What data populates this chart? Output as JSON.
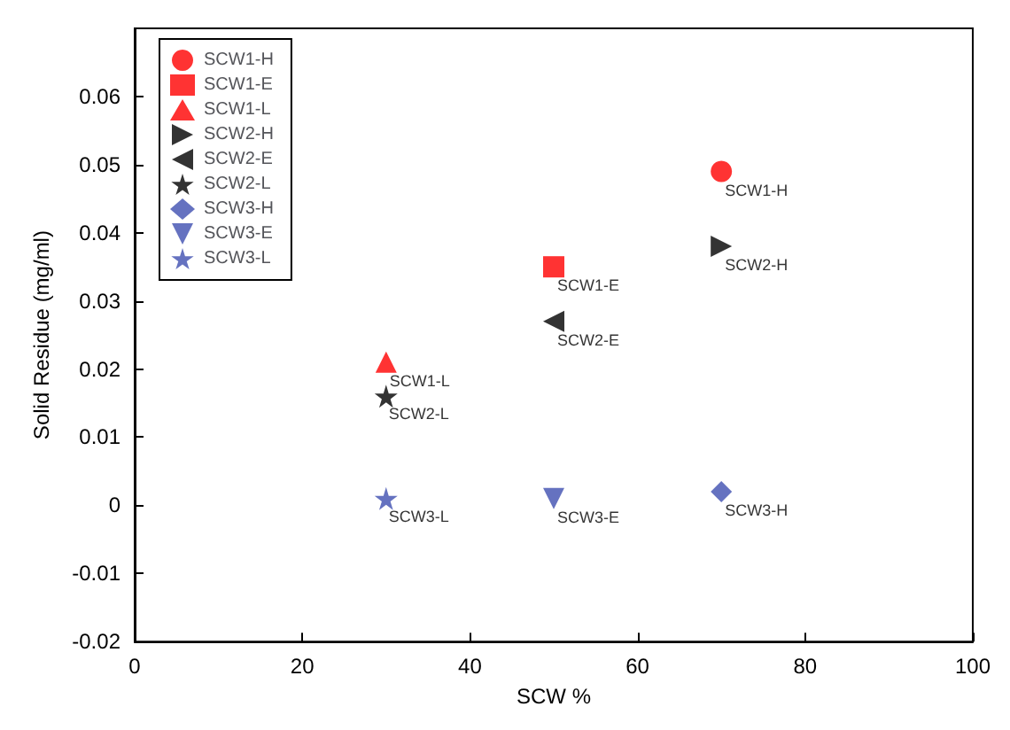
{
  "chart_data": {
    "type": "scatter",
    "xlabel": "SCW %",
    "ylabel": "Solid Residue (mg/ml)",
    "xlim": [
      0,
      100
    ],
    "xticks": [
      0,
      20,
      40,
      60,
      80,
      100
    ],
    "ylim": [
      -0.02,
      0.07
    ],
    "yticks": [
      -0.02,
      -0.01,
      0,
      0.01,
      0.02,
      0.03,
      0.04,
      0.05,
      0.06
    ],
    "grid": false,
    "legend": "top left",
    "series": [
      {
        "name": "SCW1-H",
        "color": "#ff0000",
        "marker": "circle",
        "x": [
          70
        ],
        "values": [
          0.049
        ]
      },
      {
        "name": "SCW1-E",
        "color": "#ff0000",
        "marker": "square",
        "x": [
          50
        ],
        "values": [
          0.035
        ]
      },
      {
        "name": "SCW1-L",
        "color": "#ff0000",
        "marker": "triangle",
        "x": [
          30
        ],
        "values": [
          0.021
        ]
      },
      {
        "name": "SCW2-H",
        "color": "#000000",
        "marker": "triangle-right",
        "x": [
          70
        ],
        "values": [
          0.038
        ]
      },
      {
        "name": "SCW2-E",
        "color": "#000000",
        "marker": "triangle-left",
        "x": [
          50
        ],
        "values": [
          0.027
        ]
      },
      {
        "name": "SCW2-L",
        "color": "#000000",
        "marker": "star",
        "x": [
          30
        ],
        "values": [
          0.016
        ]
      },
      {
        "name": "SCW3-H",
        "color": "#3e4fb0",
        "marker": "diamond",
        "x": [
          70
        ],
        "values": [
          0.002
        ]
      },
      {
        "name": "SCW3-E",
        "color": "#3e4fb0",
        "marker": "triangle-down",
        "x": [
          50
        ],
        "values": [
          0.001
        ]
      },
      {
        "name": "SCW3-L",
        "color": "#3e4fb0",
        "marker": "star",
        "x": [
          30
        ],
        "values": [
          0.001
        ]
      }
    ]
  }
}
